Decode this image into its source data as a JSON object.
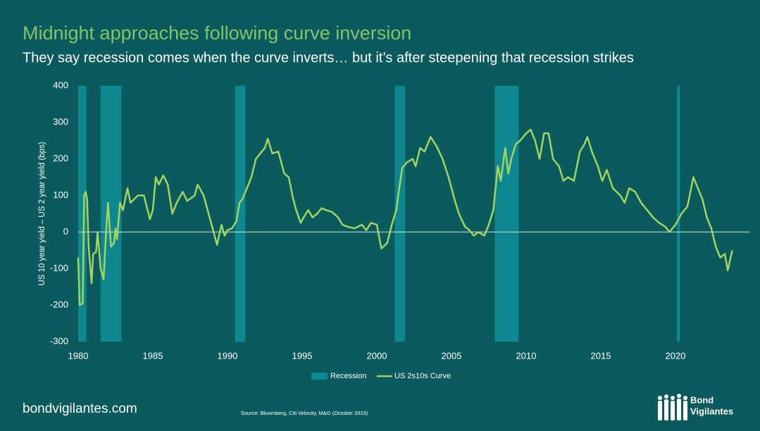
{
  "chart_data": {
    "type": "line",
    "title": "Midnight approaches following curve inversion",
    "subtitle": "They say recession comes when the curve inverts… but it’s after steepening that recession strikes",
    "y_label": "US 10 year yield – US 2 year yield (bps)",
    "source": "Source: Bloomberg, Citi Velocity, M&G (October 2023)",
    "footer": "bondvigilantes.com",
    "logo": [
      "Bond",
      "Vigilantes"
    ],
    "xlim": [
      1980,
      2025
    ],
    "xticks": [
      1980,
      1985,
      1990,
      1995,
      2000,
      2005,
      2010,
      2015,
      2020
    ],
    "ylim": [
      -300,
      400
    ],
    "yticks": [
      -300,
      -200,
      -100,
      0,
      100,
      200,
      300,
      400
    ],
    "recessions": {
      "name": "Recession",
      "color": "#0e8791",
      "periods": [
        [
          1980.0,
          1980.55
        ],
        [
          1981.5,
          1982.9
        ],
        [
          1990.5,
          1991.2
        ],
        [
          2001.2,
          2001.9
        ],
        [
          2007.9,
          2009.5
        ],
        [
          2020.1,
          2020.3
        ]
      ]
    },
    "x": [
      1980.0,
      1980.1,
      1980.3,
      1980.4,
      1980.5,
      1980.6,
      1980.7,
      1980.9,
      1981.0,
      1981.2,
      1981.3,
      1981.5,
      1981.7,
      1981.9,
      1982.0,
      1982.2,
      1982.4,
      1982.5,
      1982.6,
      1982.8,
      1983.0,
      1983.3,
      1983.5,
      1984.0,
      1984.4,
      1984.8,
      1985.0,
      1985.2,
      1985.4,
      1985.7,
      1986.0,
      1986.3,
      1986.6,
      1987.0,
      1987.3,
      1987.8,
      1988.0,
      1988.4,
      1988.8,
      1989.0,
      1989.3,
      1989.6,
      1989.8,
      1990.0,
      1990.3,
      1990.6,
      1990.8,
      1991.0,
      1991.3,
      1991.6,
      1991.9,
      1992.2,
      1992.5,
      1992.7,
      1993.0,
      1993.4,
      1993.8,
      1994.1,
      1994.4,
      1994.6,
      1994.9,
      1995.1,
      1995.4,
      1995.7,
      1996.0,
      1996.3,
      1996.6,
      1997.0,
      1997.4,
      1997.7,
      1998.0,
      1998.5,
      1999.0,
      1999.3,
      1999.6,
      2000.0,
      2000.3,
      2000.7,
      2001.0,
      2001.3,
      2001.5,
      2001.7,
      2002.0,
      2002.4,
      2002.6,
      2002.9,
      2003.2,
      2003.6,
      2004.0,
      2004.4,
      2004.8,
      2005.2,
      2005.5,
      2005.9,
      2006.2,
      2006.5,
      2006.8,
      2007.2,
      2007.5,
      2007.8,
      2008.1,
      2008.3,
      2008.6,
      2008.8,
      2009.0,
      2009.3,
      2009.6,
      2010.0,
      2010.3,
      2010.6,
      2010.9,
      2011.2,
      2011.5,
      2011.8,
      2012.2,
      2012.5,
      2012.8,
      2013.2,
      2013.6,
      2013.9,
      2014.1,
      2014.4,
      2014.8,
      2015.1,
      2015.4,
      2015.8,
      2016.3,
      2016.6,
      2016.9,
      2017.3,
      2017.7,
      2018.1,
      2018.5,
      2018.9,
      2019.3,
      2019.6,
      2020.0,
      2020.4,
      2020.8,
      2021.2,
      2021.5,
      2021.8,
      2022.1,
      2022.4,
      2022.7,
      2023.0,
      2023.3,
      2023.5,
      2023.8
    ],
    "series": [
      {
        "name": "US 2s10s Curve",
        "color": "#a2d45e",
        "values": [
          -70,
          -200,
          -195,
          100,
          110,
          90,
          -40,
          -140,
          -60,
          -55,
          0,
          -100,
          -130,
          20,
          80,
          -40,
          -30,
          10,
          -20,
          80,
          60,
          120,
          80,
          100,
          100,
          35,
          60,
          150,
          130,
          155,
          130,
          50,
          80,
          110,
          85,
          100,
          130,
          100,
          40,
          10,
          -35,
          20,
          -10,
          5,
          10,
          30,
          80,
          90,
          120,
          150,
          200,
          215,
          230,
          255,
          215,
          220,
          160,
          150,
          90,
          60,
          25,
          40,
          60,
          40,
          50,
          65,
          60,
          55,
          40,
          20,
          15,
          10,
          20,
          5,
          25,
          20,
          -45,
          -30,
          20,
          60,
          120,
          175,
          190,
          200,
          180,
          230,
          220,
          260,
          235,
          200,
          150,
          90,
          50,
          15,
          5,
          -10,
          0,
          -10,
          20,
          60,
          180,
          140,
          230,
          160,
          200,
          240,
          250,
          270,
          280,
          250,
          200,
          270,
          270,
          200,
          180,
          140,
          150,
          140,
          220,
          240,
          260,
          220,
          180,
          140,
          170,
          120,
          100,
          80,
          120,
          110,
          80,
          60,
          40,
          25,
          15,
          0,
          20,
          50,
          70,
          150,
          120,
          90,
          40,
          10,
          -40,
          -70,
          -60,
          -105,
          -50
        ]
      }
    ]
  }
}
